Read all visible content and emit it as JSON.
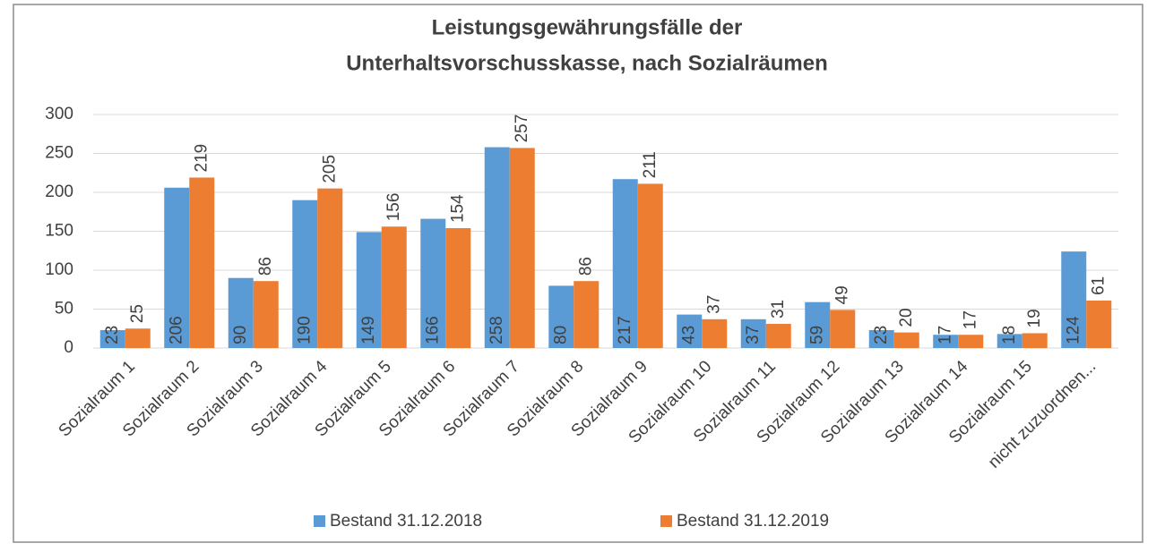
{
  "chart_data": {
    "type": "bar",
    "title": [
      "Leistungsgewährungsfälle der",
      "Unterhaltsvorschusskasse, nach Sozialräumen"
    ],
    "categories": [
      "Sozialraum 1",
      "Sozialraum 2",
      "Sozialraum 3",
      "Sozialraum 4",
      "Sozialraum 5",
      "Sozialraum 6",
      "Sozialraum 7",
      "Sozialraum 8",
      "Sozialraum 9",
      "Sozialraum 10",
      "Sozialraum 11",
      "Sozialraum 12",
      "Sozialraum 13",
      "Sozialraum 14",
      "Sozialraum 15",
      "nicht zuzuordnen..."
    ],
    "series": [
      {
        "name": "Bestand 31.12.2018",
        "color": "#5b9bd5",
        "values": [
          23,
          206,
          90,
          190,
          149,
          166,
          258,
          80,
          217,
          43,
          37,
          59,
          23,
          17,
          18,
          124
        ]
      },
      {
        "name": "Bestand 31.12.2019",
        "color": "#ed7d31",
        "values": [
          25,
          219,
          86,
          205,
          156,
          154,
          257,
          86,
          211,
          37,
          31,
          49,
          20,
          17,
          19,
          61
        ]
      }
    ],
    "ylim": [
      0,
      300
    ],
    "yticks": [
      0,
      50,
      100,
      150,
      200,
      250,
      300
    ],
    "grid": true,
    "legend": "bottom"
  }
}
